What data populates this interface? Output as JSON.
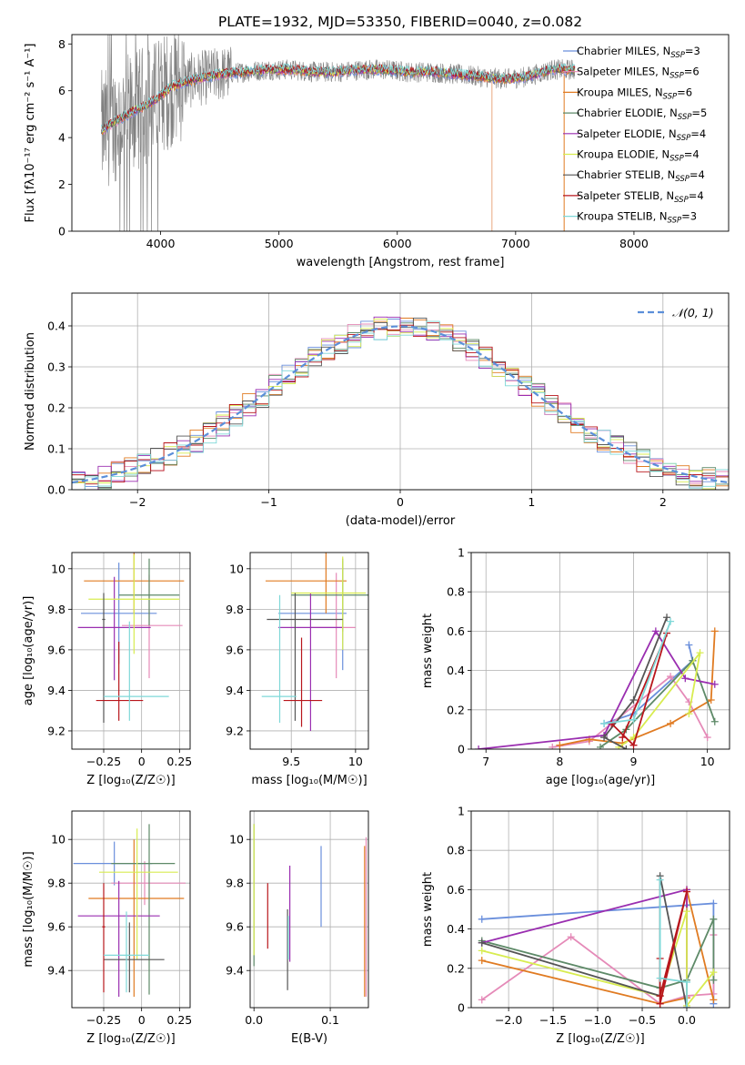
{
  "figure": {
    "title": "PLATE=1932, MJD=53350, FIBERID=0040, z=0.082"
  },
  "series_styles": [
    {
      "name": "Chabrier MILES",
      "nssp": "3",
      "color": "#6a8fdc"
    },
    {
      "name": "Salpeter MILES",
      "nssp": "6",
      "color": "#e58ab8"
    },
    {
      "name": "Kroupa MILES",
      "nssp": "6",
      "color": "#e07b22"
    },
    {
      "name": "Chabrier ELODIE",
      "nssp": "5",
      "color": "#5e8a68"
    },
    {
      "name": "Salpeter ELODIE",
      "nssp": "4",
      "color": "#9a2eb0"
    },
    {
      "name": "Kroupa ELODIE",
      "nssp": "4",
      "color": "#d8ec50"
    },
    {
      "name": "Chabrier STELIB",
      "nssp": "4",
      "color": "#555555"
    },
    {
      "name": "Salpeter STELIB",
      "nssp": "4",
      "color": "#b8161c"
    },
    {
      "name": "Kroupa STELIB",
      "nssp": "3",
      "color": "#7fd8d8"
    }
  ],
  "chart_data": [
    {
      "id": "spectrum",
      "type": "line",
      "xlabel": "wavelength [Angstrom, rest frame]",
      "ylabel": "Flux [fλ10⁻¹⁷ erg cm⁻² s⁻¹ A⁻¹]",
      "xlim": [
        3250,
        8800
      ],
      "ylim": [
        0,
        8.4
      ],
      "xticks": [
        4000,
        5000,
        6000,
        7000,
        8000
      ],
      "yticks": [
        0,
        2,
        4,
        6,
        8
      ],
      "data_color": "#808080",
      "legend_position": "right",
      "continuum_x": [
        3500,
        3650,
        3800,
        3950,
        4100,
        4300,
        4500,
        4700,
        4900,
        5100,
        5300,
        5500,
        5700,
        5900,
        6100,
        6300,
        6500,
        6700,
        6900,
        7100,
        7300,
        7500
      ],
      "continuum_y": [
        4.3,
        4.8,
        5.2,
        5.6,
        6.2,
        6.5,
        6.7,
        6.8,
        6.9,
        6.9,
        6.8,
        6.8,
        6.9,
        6.9,
        6.8,
        6.8,
        6.7,
        6.6,
        6.5,
        6.6,
        6.9,
        6.9
      ]
    },
    {
      "id": "residuals",
      "type": "histogram",
      "xlabel": "(data-model)/error",
      "ylabel": "Normed distribution",
      "xlim": [
        -2.5,
        2.5
      ],
      "ylim": [
        0,
        0.48
      ],
      "xticks": [
        -2,
        -1,
        0,
        1,
        2
      ],
      "yticks": [
        0.0,
        0.1,
        0.2,
        0.3,
        0.4
      ],
      "grid": true,
      "bin_width": 0.1,
      "reference_curve": {
        "label": "𝒩(0, 1)",
        "mean": 0,
        "sigma": 1,
        "color": "#5b8fd9"
      },
      "legend_position": "top-right"
    },
    {
      "id": "age-vs-Z",
      "type": "errorbar",
      "xlabel": "Z [log₁₀(Z/Z☉)]",
      "ylabel": "age  [log₁₀(age/yr)]",
      "xlim": [
        -0.46,
        0.32
      ],
      "ylim": [
        9.11,
        10.08
      ],
      "xticks": [
        -0.25,
        0.0,
        0.25
      ],
      "yticks": [
        9.2,
        9.4,
        9.6,
        9.8,
        10.0
      ],
      "grid": true,
      "points": [
        {
          "series": 0,
          "x": -0.15,
          "y": 9.78,
          "xerr": [
            0.25,
            0.25
          ],
          "yerr": [
            0.25,
            0.25
          ]
        },
        {
          "series": 1,
          "x": 0.05,
          "y": 9.72,
          "xerr": [
            0.18,
            0.22
          ],
          "yerr": [
            0.26,
            0.25
          ]
        },
        {
          "series": 2,
          "x": -0.05,
          "y": 9.94,
          "xerr": [
            0.33,
            0.33
          ],
          "yerr": [
            0.16,
            0.18
          ]
        },
        {
          "series": 3,
          "x": 0.05,
          "y": 9.87,
          "xerr": [
            0.2,
            0.2
          ],
          "yerr": [
            0.15,
            0.18
          ]
        },
        {
          "series": 4,
          "x": -0.18,
          "y": 9.71,
          "xerr": [
            0.24,
            0.24
          ],
          "yerr": [
            0.26,
            0.25
          ]
        },
        {
          "series": 5,
          "x": -0.05,
          "y": 9.85,
          "xerr": [
            0.3,
            0.3
          ],
          "yerr": [
            0.27,
            0.22
          ]
        },
        {
          "series": 6,
          "x": -0.25,
          "y": 9.75,
          "xerr": [
            0.01,
            0.01
          ],
          "yerr": [
            0.51,
            0.13
          ]
        },
        {
          "series": 7,
          "x": -0.15,
          "y": 9.35,
          "xerr": [
            0.15,
            0.16
          ],
          "yerr": [
            0.1,
            0.29
          ]
        },
        {
          "series": 8,
          "x": -0.08,
          "y": 9.37,
          "xerr": [
            0.17,
            0.26
          ],
          "yerr": [
            0.12,
            0.37
          ]
        }
      ]
    },
    {
      "id": "age-vs-mass",
      "type": "errorbar",
      "xlabel": "mass [log₁₀(M/M☉)]",
      "ylabel": "",
      "xlim": [
        9.18,
        10.1
      ],
      "ylim": [
        9.11,
        10.08
      ],
      "xticks": [
        9.5,
        10.0
      ],
      "yticks": [
        9.2,
        9.4,
        9.6,
        9.8,
        10.0
      ],
      "grid": true,
      "points": [
        {
          "series": 0,
          "x": 9.9,
          "y": 9.78,
          "xerr": [
            0.5,
            0.03
          ],
          "yerr": [
            0.28,
            0.26
          ]
        },
        {
          "series": 1,
          "x": 9.85,
          "y": 9.71,
          "xerr": [
            0.2,
            0.15
          ],
          "yerr": [
            0.25,
            0.27
          ]
        },
        {
          "series": 2,
          "x": 9.77,
          "y": 9.94,
          "xerr": [
            0.47,
            0.16
          ],
          "yerr": [
            0.16,
            0.18
          ]
        },
        {
          "series": 3,
          "x": 9.9,
          "y": 9.87,
          "xerr": [
            0.4,
            0.2
          ],
          "yerr": [
            0.18,
            0.18
          ]
        },
        {
          "series": 4,
          "x": 9.65,
          "y": 9.71,
          "xerr": [
            0.25,
            0.25
          ],
          "yerr": [
            0.51,
            0.17
          ]
        },
        {
          "series": 5,
          "x": 9.9,
          "y": 9.88,
          "xerr": [
            0.4,
            0.18
          ],
          "yerr": [
            0.28,
            0.18
          ]
        },
        {
          "series": 6,
          "x": 9.53,
          "y": 9.75,
          "xerr": [
            0.22,
            0.37
          ],
          "yerr": [
            0.5,
            0.13
          ]
        },
        {
          "series": 7,
          "x": 9.58,
          "y": 9.35,
          "xerr": [
            0.14,
            0.16
          ],
          "yerr": [
            0.13,
            0.31
          ]
        },
        {
          "series": 8,
          "x": 9.41,
          "y": 9.37,
          "xerr": [
            0.14,
            0.13
          ],
          "yerr": [
            0.13,
            0.5
          ]
        }
      ]
    },
    {
      "id": "mass-weight-vs-age",
      "type": "line",
      "xlabel": "age  [log₁₀(age/yr)]",
      "ylabel": "mass weight",
      "xlim": [
        6.8,
        10.3
      ],
      "ylim": [
        0,
        1
      ],
      "xticks": [
        7,
        8,
        9,
        10
      ],
      "yticks": [
        0.0,
        0.2,
        0.4,
        0.6,
        0.8,
        1.0
      ],
      "grid": true,
      "series": [
        {
          "series": 0,
          "x": [
            8.6,
            9.0,
            9.8,
            9.75
          ],
          "y": [
            0.13,
            0.18,
            0.45,
            0.53
          ]
        },
        {
          "series": 1,
          "x": [
            7.9,
            8.4,
            9.5,
            9.75,
            10.0
          ],
          "y": [
            0.01,
            0.04,
            0.37,
            0.24,
            0.06
          ]
        },
        {
          "series": 2,
          "x": [
            8.0,
            8.4,
            8.85,
            9.5,
            10.05,
            10.1
          ],
          "y": [
            0.02,
            0.05,
            0.03,
            0.13,
            0.25,
            0.6
          ]
        },
        {
          "series": 3,
          "x": [
            8.55,
            8.9,
            9.8,
            10.1
          ],
          "y": [
            0.01,
            0.1,
            0.45,
            0.14
          ]
        },
        {
          "series": 4,
          "x": [
            6.9,
            8.6,
            9.3,
            9.7,
            10.1
          ],
          "y": [
            0.0,
            0.07,
            0.6,
            0.36,
            0.33
          ]
        },
        {
          "series": 5,
          "x": [
            8.8,
            9.0,
            9.9,
            9.75
          ],
          "y": [
            0.01,
            0.06,
            0.49,
            0.18
          ]
        },
        {
          "series": 6,
          "x": [
            8.9,
            8.6,
            9.0,
            9.45
          ],
          "y": [
            0.0,
            0.06,
            0.25,
            0.67
          ]
        },
        {
          "series": 7,
          "x": [
            8.7,
            9.0,
            9.45,
            8.85
          ],
          "y": [
            0.13,
            0.02,
            0.59,
            0.06
          ]
        },
        {
          "series": 8,
          "x": [
            8.6,
            9.0,
            9.5
          ],
          "y": [
            0.13,
            0.15,
            0.65
          ]
        }
      ]
    },
    {
      "id": "mass-vs-Z",
      "type": "errorbar",
      "xlabel": "Z [log₁₀(Z/Z☉)]",
      "ylabel": "mass [log₁₀(M/M☉)]",
      "xlim": [
        -0.46,
        0.32
      ],
      "ylim": [
        9.23,
        10.13
      ],
      "xticks": [
        -0.25,
        0.0,
        0.25
      ],
      "yticks": [
        9.4,
        9.6,
        9.8,
        10.0
      ],
      "grid": true,
      "points": [
        {
          "series": 0,
          "x": -0.18,
          "y": 9.89,
          "xerr": [
            0.27,
            0.25
          ],
          "yerr": [
            0.1,
            0.1
          ]
        },
        {
          "series": 1,
          "x": 0.02,
          "y": 9.8,
          "xerr": [
            0.22,
            0.27
          ],
          "yerr": [
            0.1,
            0.1
          ]
        },
        {
          "series": 2,
          "x": -0.05,
          "y": 9.73,
          "xerr": [
            0.3,
            0.33
          ],
          "yerr": [
            0.45,
            0.27
          ]
        },
        {
          "series": 3,
          "x": 0.05,
          "y": 9.89,
          "xerr": [
            0.25,
            0.17
          ],
          "yerr": [
            0.6,
            0.18
          ]
        },
        {
          "series": 4,
          "x": -0.15,
          "y": 9.65,
          "xerr": [
            0.27,
            0.27
          ],
          "yerr": [
            0.37,
            0.16
          ]
        },
        {
          "series": 5,
          "x": -0.03,
          "y": 9.85,
          "xerr": [
            0.25,
            0.27
          ],
          "yerr": [
            0.4,
            0.2
          ]
        },
        {
          "series": 6,
          "x": -0.08,
          "y": 9.45,
          "xerr": [
            0.17,
            0.23
          ],
          "yerr": [
            0.15,
            0.17
          ]
        },
        {
          "series": 7,
          "x": -0.25,
          "y": 9.6,
          "xerr": [
            0.01,
            0.01
          ],
          "yerr": [
            0.3,
            0.2
          ]
        },
        {
          "series": 8,
          "x": -0.1,
          "y": 9.47,
          "xerr": [
            0.15,
            0.15
          ],
          "yerr": [
            0.17,
            0.2
          ]
        }
      ]
    },
    {
      "id": "mass-vs-EBV",
      "type": "errorbar",
      "xlabel": "E(B-V)",
      "ylabel": "",
      "xlim": [
        -0.005,
        0.15
      ],
      "ylim": [
        9.23,
        10.13
      ],
      "xticks": [
        0.0,
        0.1
      ],
      "xticklabels": [
        "0.0",
        "0.1"
      ],
      "yticks": [
        9.4,
        9.6,
        9.8,
        10.0
      ],
      "grid": true,
      "points": [
        {
          "series": 0,
          "x": 0.088,
          "y": 9.78,
          "xerr": [
            0,
            0
          ],
          "yerr": [
            0.18,
            0.19
          ]
        },
        {
          "series": 1,
          "x": 0.147,
          "y": 9.72,
          "xerr": [
            0,
            0
          ],
          "yerr": [
            0.44,
            0.29
          ]
        },
        {
          "series": 2,
          "x": 0.145,
          "y": 9.6,
          "xerr": [
            0,
            0
          ],
          "yerr": [
            0.32,
            0.37
          ]
        },
        {
          "series": 3,
          "x": 0.0,
          "y": 9.75,
          "xerr": [
            0,
            0
          ],
          "yerr": [
            0.33,
            0.32
          ]
        },
        {
          "series": 4,
          "x": 0.047,
          "y": 9.66,
          "xerr": [
            0,
            0
          ],
          "yerr": [
            0.22,
            0.22
          ]
        },
        {
          "series": 5,
          "x": 0.0,
          "y": 9.78,
          "xerr": [
            0,
            0
          ],
          "yerr": [
            0.31,
            0.29
          ]
        },
        {
          "series": 6,
          "x": 0.044,
          "y": 9.5,
          "xerr": [
            0,
            0
          ],
          "yerr": [
            0.19,
            0.18
          ]
        },
        {
          "series": 7,
          "x": 0.018,
          "y": 9.65,
          "xerr": [
            0,
            0
          ],
          "yerr": [
            0.15,
            0.15
          ]
        },
        {
          "series": 8,
          "x": 0.045,
          "y": 9.55,
          "xerr": [
            0,
            0
          ],
          "yerr": [
            0.1,
            0.1
          ]
        }
      ]
    },
    {
      "id": "mass-weight-vs-Z",
      "type": "line",
      "xlabel": "Z [log₁₀(Z/Z☉)]",
      "ylabel": "mass weight",
      "xlim": [
        -2.42,
        0.48
      ],
      "ylim": [
        0,
        1
      ],
      "xticks": [
        -2.0,
        -1.5,
        -1.0,
        -0.5,
        0.0
      ],
      "xticklabels": [
        "−2.0",
        "−1.5",
        "−1.0",
        "−0.5",
        "0.0"
      ],
      "yticks": [
        0.0,
        0.2,
        0.4,
        0.6,
        0.8,
        1.0
      ],
      "grid": true,
      "series": [
        {
          "series": 0,
          "x": [
            -2.3,
            0.3,
            0.3
          ],
          "y": [
            0.45,
            0.53,
            0.02
          ]
        },
        {
          "series": 1,
          "x": [
            -2.3,
            -1.3,
            -0.3,
            0.0,
            0.3,
            0.3
          ],
          "y": [
            0.04,
            0.36,
            0.02,
            0.06,
            0.07,
            0.37
          ]
        },
        {
          "series": 2,
          "x": [
            -2.3,
            -0.3,
            0.0,
            0.0,
            0.3
          ],
          "y": [
            0.24,
            0.02,
            0.05,
            0.6,
            0.04
          ]
        },
        {
          "series": 3,
          "x": [
            -2.3,
            -0.3,
            0.0,
            0.3,
            0.3
          ],
          "y": [
            0.34,
            0.1,
            0.14,
            0.45,
            0.14
          ]
        },
        {
          "series": 4,
          "x": [
            -2.3,
            0.0,
            0.0
          ],
          "y": [
            0.33,
            0.6,
            0.0
          ]
        },
        {
          "series": 5,
          "x": [
            -2.3,
            -0.3,
            0.0,
            0.0,
            0.3
          ],
          "y": [
            0.29,
            0.06,
            0.49,
            0.01,
            0.18
          ]
        },
        {
          "series": 6,
          "x": [
            -2.3,
            -0.3,
            -0.3,
            0.0
          ],
          "y": [
            0.33,
            0.06,
            0.67,
            0.0
          ]
        },
        {
          "series": 7,
          "x": [
            -0.3,
            -0.3,
            0.0,
            -0.3
          ],
          "y": [
            0.25,
            0.02,
            0.59,
            0.06
          ]
        },
        {
          "series": 8,
          "x": [
            -0.3,
            -0.3,
            0.0,
            0.0
          ],
          "y": [
            0.65,
            0.15,
            0.13,
            0.0
          ]
        }
      ]
    }
  ]
}
